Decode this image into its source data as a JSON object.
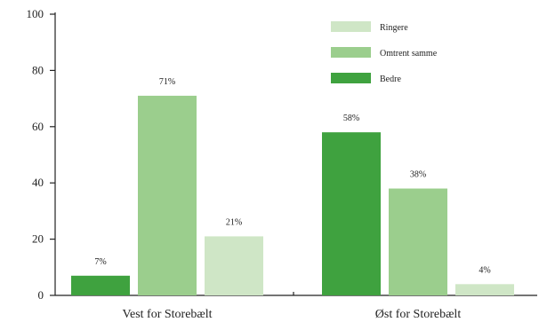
{
  "chart_data": {
    "type": "bar",
    "title": "",
    "xlabel": "",
    "ylabel": "",
    "ylim": [
      0,
      100
    ],
    "yticks": [
      0,
      20,
      40,
      60,
      80,
      100
    ],
    "categories": [
      "Vest for Storebælt",
      "Øst for Storebælt"
    ],
    "series": [
      {
        "name": "Bedre",
        "values": [
          7,
          58
        ],
        "labels": [
          "7%",
          "58%"
        ],
        "color": "#3fa23f"
      },
      {
        "name": "Omtrent samme",
        "values": [
          71,
          38
        ],
        "labels": [
          "71%",
          "38%"
        ],
        "color": "#9bce8d"
      },
      {
        "name": "Ringere",
        "values": [
          21,
          4
        ],
        "labels": [
          "21%",
          "4%"
        ],
        "color": "#cfe6c6"
      }
    ],
    "legend": {
      "position": "top-right",
      "order": [
        "Ringere",
        "Omtrent samme",
        "Bedre"
      ]
    },
    "grid": false
  }
}
